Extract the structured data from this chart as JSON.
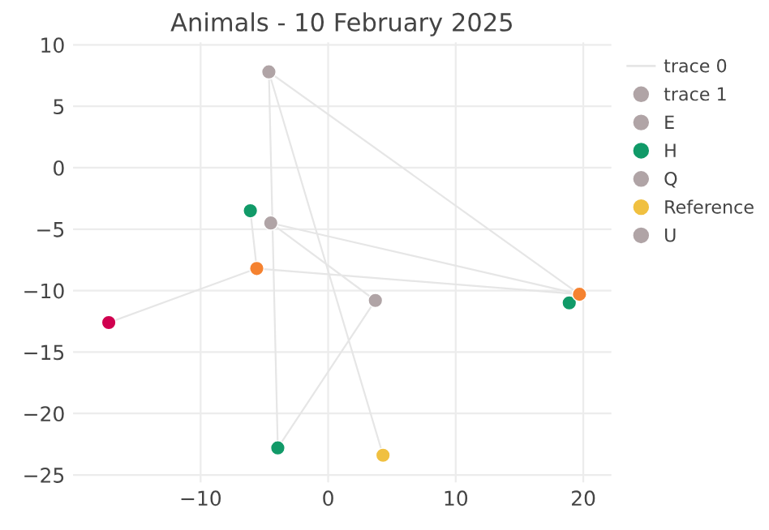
{
  "chart_data": {
    "type": "scatter",
    "title": "Animals - 10 February 2025",
    "series": [
      {
        "name": "trace 0",
        "type": "line",
        "color": "#e6e6e6",
        "marker": "none",
        "x": [
          -17.2,
          -5.6,
          19.7,
          -4.5,
          3.7,
          -3.95,
          -4.65,
          4.3,
          null,
          -4.65,
          19.7,
          null,
          -5.6,
          -6.1
        ],
        "values": [
          -12.6,
          -8.2,
          -10.3,
          -4.5,
          -10.8,
          -22.8,
          7.8,
          -23.4,
          null,
          7.8,
          -10.3,
          null,
          -8.2,
          -3.5
        ]
      },
      {
        "name": "trace 1",
        "color": "#b0a4a6",
        "x": [
          -4.65
        ],
        "values": [
          7.8
        ]
      },
      {
        "name": "E",
        "color": "#b0a4a6",
        "x": [
          -4.5
        ],
        "values": [
          -4.5
        ]
      },
      {
        "name": "H",
        "color": "#119a68",
        "x": [
          -6.1,
          18.9,
          -3.95
        ],
        "values": [
          -3.5,
          -11.0,
          -22.8
        ]
      },
      {
        "name": "Q",
        "color": "#b0a4a6",
        "x": [
          3.7
        ],
        "values": [
          -10.8
        ]
      },
      {
        "name": "Reference",
        "color": "#f0c040",
        "x": [
          4.3
        ],
        "values": [
          -23.4
        ]
      },
      {
        "name": "U",
        "color": "#b0a4a6"
      },
      {
        "color": "#f58230",
        "x": [
          -5.6,
          19.7
        ],
        "values": [
          -8.2,
          -10.3
        ]
      },
      {
        "color": "#d0004f",
        "x": [
          -17.2
        ],
        "values": [
          -12.6
        ]
      }
    ],
    "xlim": [
      -20,
      22.2
    ],
    "ylim": [
      -25.6,
      10.2
    ],
    "xticks": [
      {
        "value": -10,
        "label": "−10"
      },
      0,
      10,
      20
    ],
    "yticks": [
      {
        "value": -25,
        "label": "−25"
      },
      {
        "value": -20,
        "label": "−20"
      },
      {
        "value": -15,
        "label": "−15"
      },
      {
        "value": -10,
        "label": "−10"
      },
      {
        "value": -5,
        "label": "−5"
      },
      0,
      5,
      10
    ],
    "grid": true,
    "legend": "top right",
    "marker": "circle"
  }
}
